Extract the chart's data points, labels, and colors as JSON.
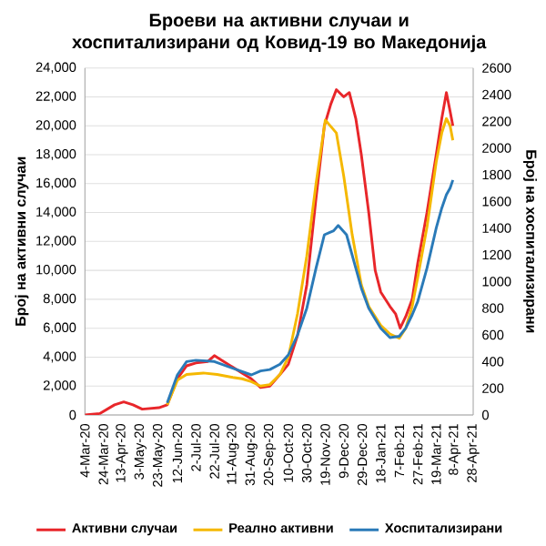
{
  "chart_data": {
    "type": "line",
    "title": "Броеви на активни случаи и хоспитализирани од Ковид-19 во Македонија",
    "ylabel": "Број на активни случаи",
    "y2label": "Број на хоспитализирани",
    "xlim": [
      "2020-03-04",
      "2021-04-28"
    ],
    "xticks": [
      {
        "value": "2020-03-04",
        "label": "4-Mar-20"
      },
      {
        "value": "2020-03-24",
        "label": "24-Mar-20"
      },
      {
        "value": "2020-04-13",
        "label": "13-Apr-20"
      },
      {
        "value": "2020-05-03",
        "label": "3-May-20"
      },
      {
        "value": "2020-05-23",
        "label": "23-May-20"
      },
      {
        "value": "2020-06-12",
        "label": "12-Jun-20"
      },
      {
        "value": "2020-07-02",
        "label": "2-Jul-20"
      },
      {
        "value": "2020-07-22",
        "label": "22-Jul-20"
      },
      {
        "value": "2020-08-11",
        "label": "11-Aug-20"
      },
      {
        "value": "2020-08-31",
        "label": "31-Aug-20"
      },
      {
        "value": "2020-09-20",
        "label": "20-Sep-20"
      },
      {
        "value": "2020-10-10",
        "label": "10-Oct-20"
      },
      {
        "value": "2020-10-30",
        "label": "30-Oct-20"
      },
      {
        "value": "2020-11-19",
        "label": "19-Nov-20"
      },
      {
        "value": "2020-12-09",
        "label": "9-Dec-20"
      },
      {
        "value": "2020-12-29",
        "label": "29-Dec-20"
      },
      {
        "value": "2021-01-18",
        "label": "18-Jan-21"
      },
      {
        "value": "2021-02-07",
        "label": "7-Feb-21"
      },
      {
        "value": "2021-02-27",
        "label": "27-Feb-21"
      },
      {
        "value": "2021-03-19",
        "label": "19-Mar-21"
      },
      {
        "value": "2021-04-08",
        "label": "8-Apr-21"
      },
      {
        "value": "2021-04-28",
        "label": "28-Apr-21"
      }
    ],
    "ylim": [
      0,
      24000
    ],
    "yticks": [
      0,
      {
        "value": 2000,
        "label": "2,000"
      },
      {
        "value": 4000,
        "label": "4,000"
      },
      {
        "value": 6000,
        "label": "6,000"
      },
      {
        "value": 8000,
        "label": "8,000"
      },
      {
        "value": 10000,
        "label": "10,000"
      },
      {
        "value": 12000,
        "label": "12,000"
      },
      {
        "value": 14000,
        "label": "14,000"
      },
      {
        "value": 16000,
        "label": "16,000"
      },
      {
        "value": 18000,
        "label": "18,000"
      },
      {
        "value": 20000,
        "label": "20,000"
      },
      {
        "value": 22000,
        "label": "22,000"
      },
      {
        "value": 24000,
        "label": "24,000"
      }
    ],
    "y2lim": [
      0,
      2600
    ],
    "y2ticks": [
      0,
      200,
      400,
      600,
      800,
      1000,
      1200,
      1400,
      1600,
      1800,
      2000,
      2200,
      2400,
      2600
    ],
    "grid": "y",
    "legend": "bottom",
    "line_style": "solid",
    "series": [
      {
        "name": "Активни  случаи",
        "color": "#e8262a",
        "x": [
          "2020-03-04",
          "2020-03-20",
          "2020-04-05",
          "2020-04-15",
          "2020-04-25",
          "2020-05-05",
          "2020-05-23",
          "2020-06-01",
          "2020-06-12",
          "2020-06-22",
          "2020-07-02",
          "2020-07-15",
          "2020-07-22",
          "2020-08-01",
          "2020-08-11",
          "2020-08-21",
          "2020-08-31",
          "2020-09-10",
          "2020-09-20",
          "2020-10-01",
          "2020-10-10",
          "2020-10-20",
          "2020-10-30",
          "2020-11-09",
          "2020-11-18",
          "2020-11-25",
          "2020-12-01",
          "2020-12-09",
          "2020-12-15",
          "2020-12-22",
          "2020-12-28",
          "2021-01-05",
          "2021-01-12",
          "2021-01-18",
          "2021-01-28",
          "2021-02-03",
          "2021-02-08",
          "2021-02-14",
          "2021-02-21",
          "2021-02-27",
          "2021-03-09",
          "2021-03-19",
          "2021-03-25",
          "2021-03-30",
          "2021-04-03",
          "2021-04-06"
        ],
        "values": [
          0,
          100,
          700,
          900,
          700,
          400,
          500,
          700,
          2500,
          3400,
          3600,
          3700,
          4100,
          3700,
          3300,
          2900,
          2500,
          1900,
          2000,
          2800,
          3500,
          5500,
          9000,
          15000,
          20000,
          21500,
          22500,
          22000,
          22300,
          20500,
          18000,
          14000,
          10000,
          8500,
          7500,
          7000,
          6000,
          6800,
          8000,
          10500,
          14000,
          18000,
          20500,
          22300,
          21000,
          20000
        ]
      },
      {
        "name": "Реално активни",
        "color": "#f5b800",
        "x": [
          "2020-06-01",
          "2020-06-12",
          "2020-06-22",
          "2020-07-10",
          "2020-07-25",
          "2020-08-11",
          "2020-08-21",
          "2020-08-31",
          "2020-09-10",
          "2020-09-20",
          "2020-10-01",
          "2020-10-10",
          "2020-10-20",
          "2020-10-30",
          "2020-11-09",
          "2020-11-19",
          "2020-12-01",
          "2020-12-09",
          "2020-12-18",
          "2020-12-28",
          "2021-01-05",
          "2021-01-18",
          "2021-01-28",
          "2021-02-07",
          "2021-02-14",
          "2021-02-21",
          "2021-02-27",
          "2021-03-09",
          "2021-03-19",
          "2021-03-25",
          "2021-03-30",
          "2021-04-03",
          "2021-04-06"
        ],
        "values": [
          700,
          2400,
          2800,
          2900,
          2800,
          2600,
          2500,
          2300,
          2000,
          2100,
          2800,
          4000,
          7000,
          11000,
          16000,
          20400,
          19500,
          16500,
          12500,
          9000,
          7500,
          6200,
          5600,
          5300,
          6000,
          7500,
          9500,
          13000,
          17500,
          19500,
          20500,
          20000,
          19000
        ]
      },
      {
        "name": "Хоспитализирани",
        "color": "#2a7ab8",
        "axis": "y2",
        "x": [
          "2020-06-01",
          "2020-06-12",
          "2020-06-22",
          "2020-07-02",
          "2020-07-22",
          "2020-08-11",
          "2020-08-31",
          "2020-09-10",
          "2020-09-20",
          "2020-10-01",
          "2020-10-10",
          "2020-10-20",
          "2020-10-30",
          "2020-11-09",
          "2020-11-18",
          "2020-11-28",
          "2020-12-03",
          "2020-12-12",
          "2020-12-22",
          "2020-12-28",
          "2021-01-05",
          "2021-01-18",
          "2021-01-28",
          "2021-02-07",
          "2021-02-14",
          "2021-02-21",
          "2021-02-27",
          "2021-03-09",
          "2021-03-19",
          "2021-03-25",
          "2021-03-30",
          "2021-04-03",
          "2021-04-06"
        ],
        "values": [
          90,
          300,
          400,
          410,
          400,
          350,
          300,
          330,
          340,
          380,
          450,
          600,
          800,
          1100,
          1350,
          1380,
          1420,
          1350,
          1100,
          950,
          800,
          650,
          580,
          590,
          650,
          750,
          850,
          1100,
          1400,
          1550,
          1650,
          1700,
          1760
        ]
      }
    ]
  }
}
